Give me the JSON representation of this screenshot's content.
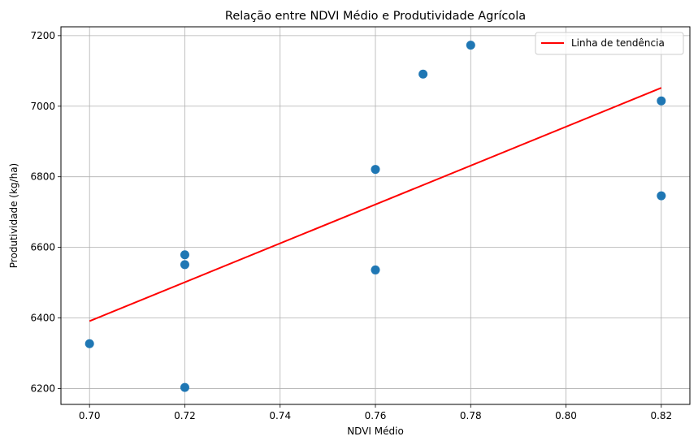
{
  "chart_data": {
    "type": "scatter",
    "title": "Relação entre NDVI Médio e Produtividade Agrícola",
    "xlabel": "NDVI Médio",
    "ylabel": "Produtividade (kg/ha)",
    "xlim": [
      0.694,
      0.826
    ],
    "ylim": [
      6155,
      7225
    ],
    "x_ticks": [
      0.7,
      0.72,
      0.74,
      0.76,
      0.78,
      0.8,
      0.82
    ],
    "x_tick_labels": [
      "0.70",
      "0.72",
      "0.74",
      "0.76",
      "0.78",
      "0.80",
      "0.82"
    ],
    "y_ticks": [
      6200,
      6400,
      6600,
      6800,
      7000,
      7200
    ],
    "y_tick_labels": [
      "6200",
      "6400",
      "6600",
      "6800",
      "7000",
      "7200"
    ],
    "grid": true,
    "legend_position": "top-right",
    "points": {
      "color": "#1f77b4",
      "x": [
        0.7,
        0.72,
        0.72,
        0.72,
        0.76,
        0.76,
        0.77,
        0.78,
        0.82,
        0.82
      ],
      "y": [
        6327,
        6203,
        6551,
        6579,
        6536,
        6821,
        7091,
        7173,
        7015,
        6746
      ]
    },
    "trend_line": {
      "name": "Linha de tendência",
      "color": "#ff0000",
      "x": [
        0.7,
        0.82
      ],
      "y": [
        6391,
        7052
      ]
    }
  }
}
